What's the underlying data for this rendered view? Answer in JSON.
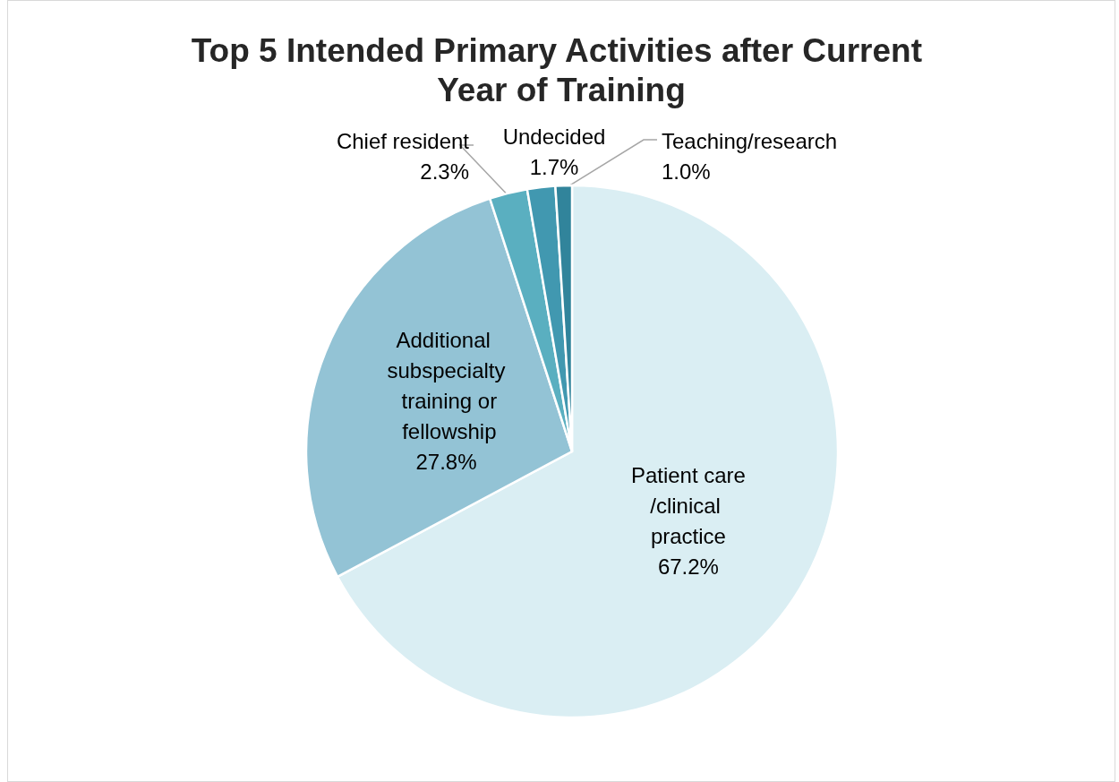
{
  "chart_data": {
    "type": "pie",
    "title": "Top 5 Intended Primary Activities after Current Year of Training",
    "categories": [
      "Patient care/clinical practice",
      "Additional subspecialty training or fellowship",
      "Chief resident",
      "Undecided",
      "Teaching/research"
    ],
    "values": [
      67.2,
      27.8,
      2.3,
      1.7,
      1.0
    ],
    "value_labels": [
      "67.2%",
      "27.8%",
      "2.3%",
      "1.7%",
      "1.0%"
    ],
    "colors": [
      "#daeef3",
      "#93c3d5",
      "#5aafc0",
      "#4198b0",
      "#31849b"
    ],
    "legend": false
  }
}
